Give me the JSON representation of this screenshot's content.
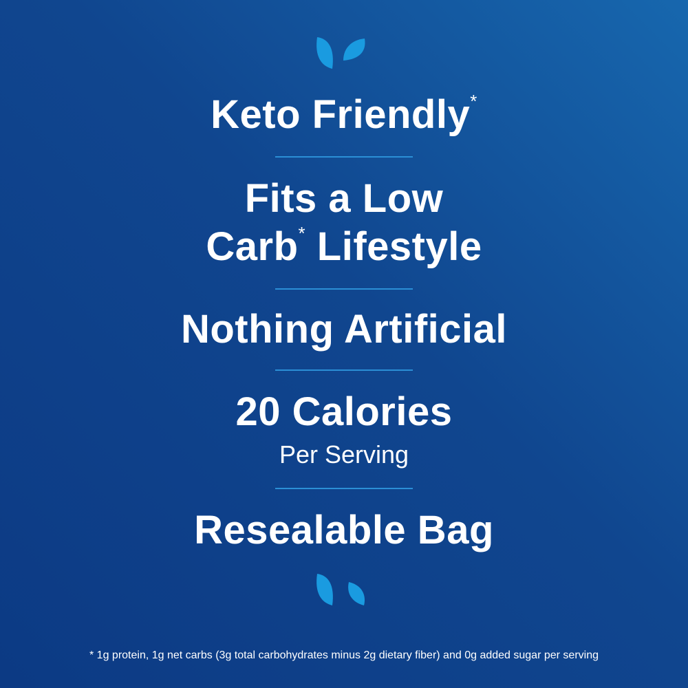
{
  "colors": {
    "background": "#10468f",
    "accent": "#1a9be0",
    "text": "#ffffff"
  },
  "icons": {
    "top": "leaves-icon",
    "bottom": "leaves-icon"
  },
  "claims": {
    "keto": "Keto Friendly",
    "keto_mark": "*",
    "lowcarb_line1": "Fits a Low",
    "lowcarb_line2a": "Carb",
    "lowcarb_mark": "*",
    "lowcarb_line2b": " Lifestyle",
    "artificial": "Nothing Artificial",
    "calories": "20 Calories",
    "calories_sub": "Per Serving",
    "bag": "Resealable Bag"
  },
  "footnote": "* 1g protein, 1g net carbs (3g total carbohydrates minus 2g dietary fiber) and 0g added sugar per serving"
}
